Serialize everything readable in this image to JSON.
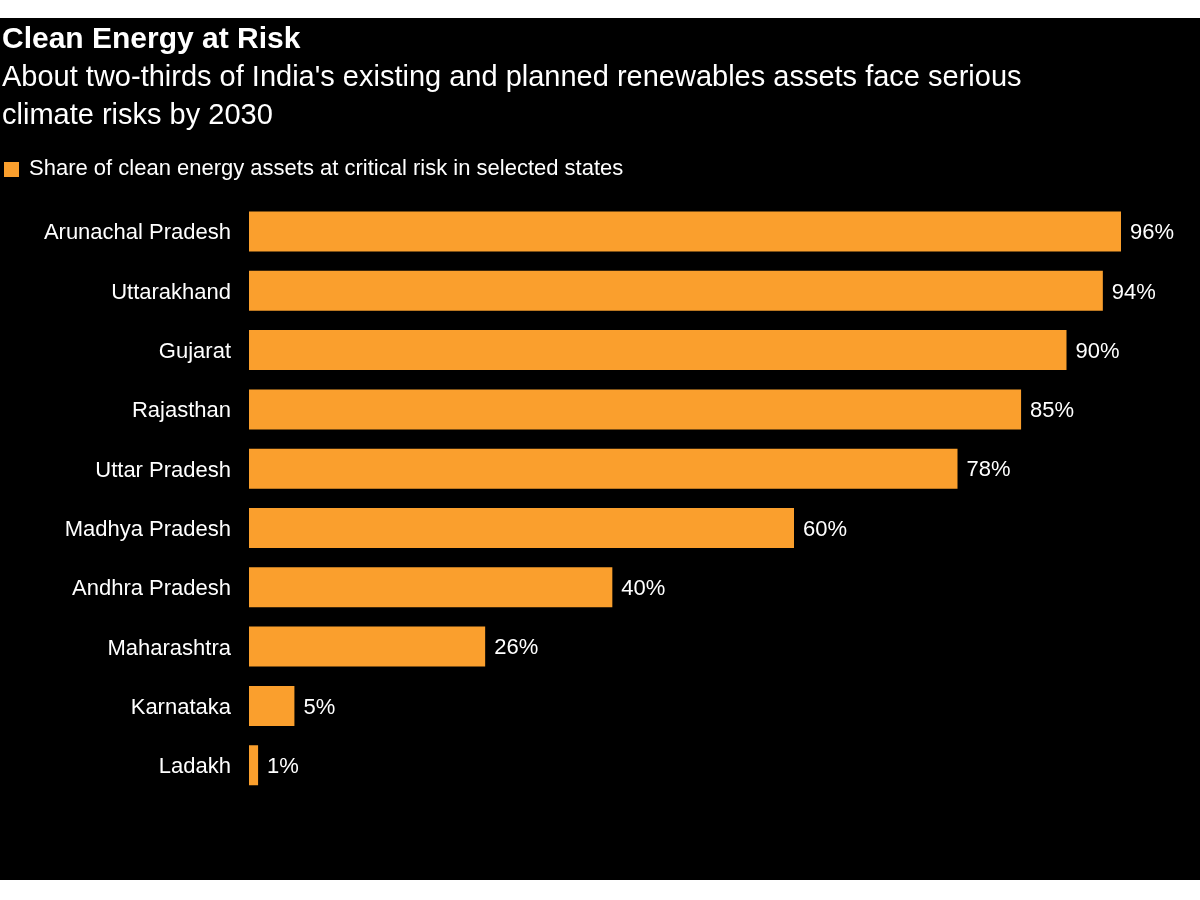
{
  "chart_data": {
    "type": "bar",
    "orientation": "horizontal",
    "title": "Clean Energy at Risk",
    "subtitle": "About two-thirds of India's existing and planned renewables assets face serious climate risks by 2030",
    "categories": [
      "Arunachal Pradesh",
      "Uttarakhand",
      "Gujarat",
      "Rajasthan",
      "Uttar Pradesh",
      "Madhya Pradesh",
      "Andhra Pradesh",
      "Maharashtra",
      "Karnataka",
      "Ladakh"
    ],
    "series": [
      {
        "name": "Share of clean energy assets at critical risk in selected states",
        "color": "#fa9f2d",
        "values": [
          96,
          94,
          90,
          85,
          78,
          60,
          40,
          26,
          5,
          1
        ],
        "value_labels": [
          "96%",
          "94%",
          "90%",
          "85%",
          "78%",
          "60%",
          "40%",
          "26%",
          "5%",
          "1%"
        ]
      }
    ],
    "legend": "top left",
    "tick_labels": "y"
  }
}
